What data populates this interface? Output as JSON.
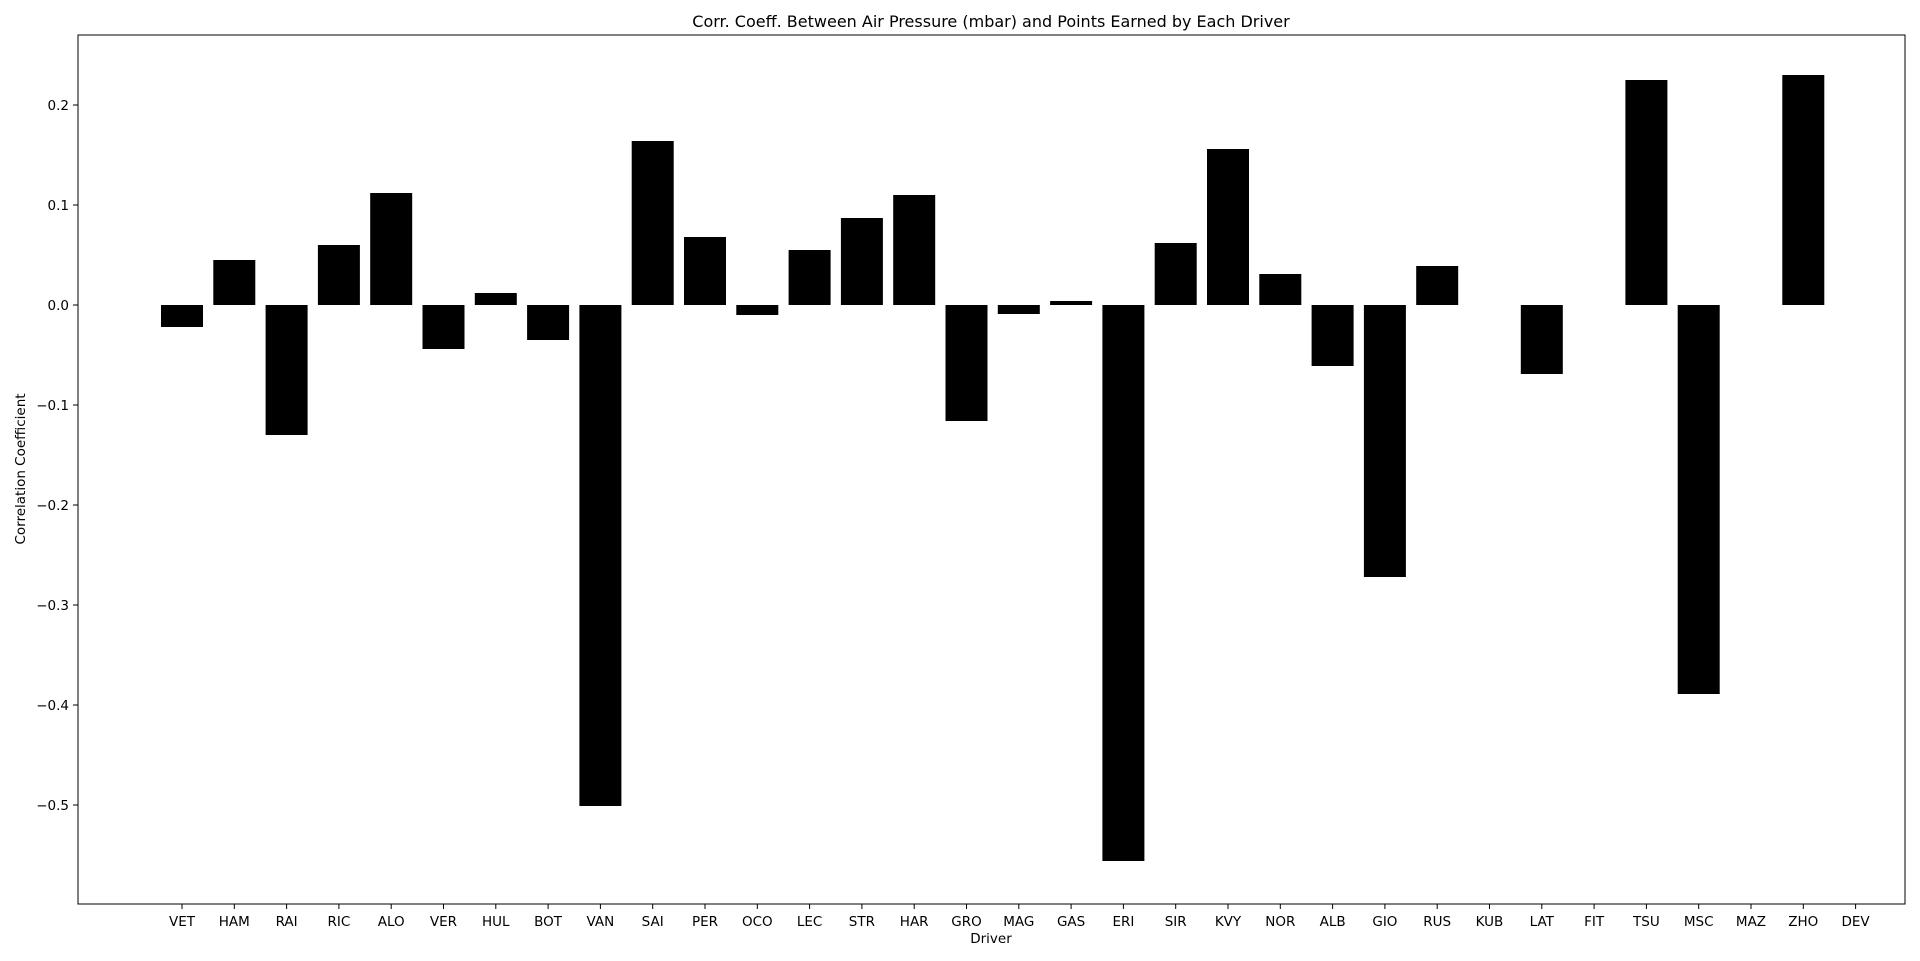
{
  "chart_data": {
    "type": "bar",
    "title": "Corr. Coeff. Between Air Pressure (mbar) and Points Earned by Each Driver",
    "xlabel": "Driver",
    "ylabel": "Correlation Coefficient",
    "ylim": [
      -0.6,
      0.26
    ],
    "yticks": [
      "0.2",
      "0.1",
      "0.0",
      "−0.1",
      "−0.2",
      "−0.3",
      "−0.4",
      "−0.5"
    ],
    "ytick_values": [
      0.2,
      0.1,
      0.0,
      -0.1,
      -0.2,
      -0.3,
      -0.4,
      -0.5
    ],
    "grid": false,
    "bar_color": "#000000",
    "categories": [
      "VET",
      "HAM",
      "RAI",
      "RIC",
      "ALO",
      "VER",
      "HUL",
      "BOT",
      "VAN",
      "SAI",
      "PER",
      "OCO",
      "LEC",
      "STR",
      "HAR",
      "GRO",
      "MAG",
      "GAS",
      "ERI",
      "SIR",
      "KVY",
      "NOR",
      "ALB",
      "GIO",
      "RUS",
      "KUB",
      "LAT",
      "FIT",
      "TSU",
      "MSC",
      "MAZ",
      "ZHO",
      "DEV"
    ],
    "values": [
      -0.022,
      0.045,
      -0.13,
      0.06,
      0.112,
      -0.044,
      0.012,
      -0.035,
      -0.501,
      0.164,
      0.068,
      -0.01,
      0.055,
      0.087,
      0.11,
      -0.116,
      -0.009,
      0.004,
      -0.556,
      0.062,
      0.156,
      0.031,
      -0.061,
      -0.272,
      0.039,
      0.0,
      -0.069,
      0.0,
      0.225,
      -0.389,
      0.0,
      0.23,
      0.0
    ]
  }
}
